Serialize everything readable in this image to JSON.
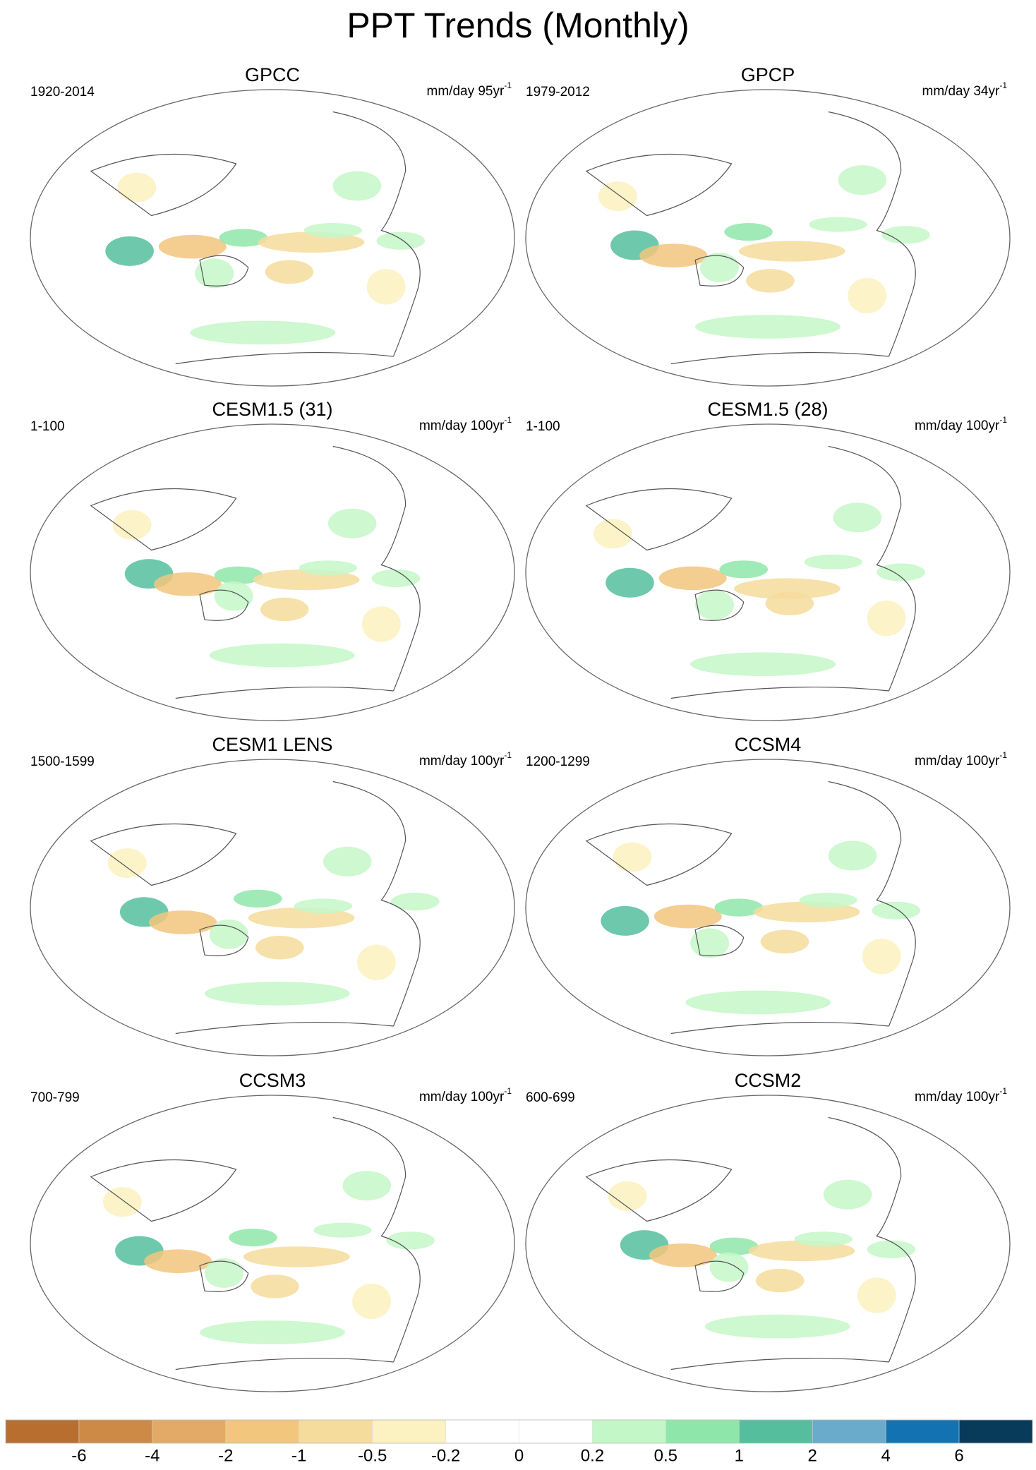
{
  "title": "PPT Trends (Monthly)",
  "panels": [
    {
      "title": "GPCC",
      "period": "1920-2014",
      "units": "mm/day 95yr",
      "units_exponent": "-1"
    },
    {
      "title": "GPCP",
      "period": "1979-2012",
      "units": "mm/day 34yr",
      "units_exponent": "-1"
    },
    {
      "title": "CESM1.5 (31)",
      "period": "1-100",
      "units": "mm/day 100yr",
      "units_exponent": "-1"
    },
    {
      "title": "CESM1.5 (28)",
      "period": "1-100",
      "units": "mm/day 100yr",
      "units_exponent": "-1"
    },
    {
      "title": "CESM1 LENS",
      "period": "1500-1599",
      "units": "mm/day 100yr",
      "units_exponent": "-1"
    },
    {
      "title": "CCSM4",
      "period": "1200-1299",
      "units": "mm/day 100yr",
      "units_exponent": "-1"
    },
    {
      "title": "CCSM3",
      "period": "700-799",
      "units": "mm/day 100yr",
      "units_exponent": "-1"
    },
    {
      "title": "CCSM2",
      "period": "600-699",
      "units": "mm/day 100yr",
      "units_exponent": "-1"
    }
  ],
  "colorbar": {
    "colors": [
      "#b86e2f",
      "#cd8a47",
      "#e2aa66",
      "#f2c67d",
      "#f6dc9c",
      "#fcf1c0",
      "#ffffff",
      "#ffffff",
      "#c4f7c8",
      "#8fe6aa",
      "#55bf9d",
      "#6aaaca",
      "#1373b2",
      "#083a5a"
    ],
    "ticks": [
      -6,
      -4,
      -2,
      -1,
      -0.5,
      -0.2,
      0,
      0.2,
      0.5,
      1,
      2,
      4,
      6
    ]
  }
}
